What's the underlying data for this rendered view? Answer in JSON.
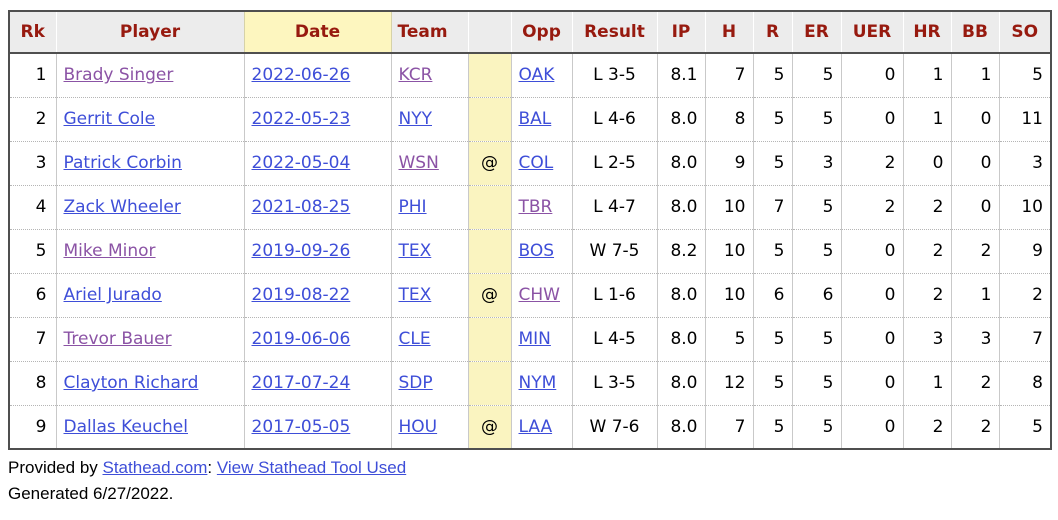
{
  "colors": {
    "header_text": "#971a0f",
    "link_blue": "#3e4ed8",
    "link_visited_purple": "#8b53a5",
    "header_bg": "#ececec",
    "sorted_column_yellow": "#fdf6bf",
    "at_column_yellow": "#faf4c0"
  },
  "table": {
    "columns": [
      {
        "key": "rk",
        "label": "Rk"
      },
      {
        "key": "player",
        "label": "Player"
      },
      {
        "key": "date",
        "label": "Date"
      },
      {
        "key": "team",
        "label": "Team"
      },
      {
        "key": "at",
        "label": ""
      },
      {
        "key": "opp",
        "label": "Opp"
      },
      {
        "key": "result",
        "label": "Result"
      },
      {
        "key": "ip",
        "label": "IP"
      },
      {
        "key": "h",
        "label": "H"
      },
      {
        "key": "r",
        "label": "R"
      },
      {
        "key": "er",
        "label": "ER"
      },
      {
        "key": "uer",
        "label": "UER"
      },
      {
        "key": "hr",
        "label": "HR"
      },
      {
        "key": "bb",
        "label": "BB"
      },
      {
        "key": "so",
        "label": "SO"
      }
    ],
    "sorted_column": "date",
    "link_columns": [
      "player",
      "date",
      "team",
      "opp"
    ],
    "rows": [
      {
        "rk": "1",
        "player": "Brady Singer",
        "player_visited": true,
        "date": "2022-06-26",
        "team": "KCR",
        "team_visited": true,
        "at": "",
        "opp": "OAK",
        "opp_visited": false,
        "result": "L 3-5",
        "ip": "8.1",
        "h": "7",
        "r": "5",
        "er": "5",
        "uer": "0",
        "hr": "1",
        "bb": "1",
        "so": "5"
      },
      {
        "rk": "2",
        "player": "Gerrit Cole",
        "player_visited": false,
        "date": "2022-05-23",
        "team": "NYY",
        "team_visited": false,
        "at": "",
        "opp": "BAL",
        "opp_visited": false,
        "result": "L 4-6",
        "ip": "8.0",
        "h": "8",
        "r": "5",
        "er": "5",
        "uer": "0",
        "hr": "1",
        "bb": "0",
        "so": "11"
      },
      {
        "rk": "3",
        "player": "Patrick Corbin",
        "player_visited": false,
        "date": "2022-05-04",
        "team": "WSN",
        "team_visited": true,
        "at": "@",
        "opp": "COL",
        "opp_visited": false,
        "result": "L 2-5",
        "ip": "8.0",
        "h": "9",
        "r": "5",
        "er": "3",
        "uer": "2",
        "hr": "0",
        "bb": "0",
        "so": "3"
      },
      {
        "rk": "4",
        "player": "Zack Wheeler",
        "player_visited": false,
        "date": "2021-08-25",
        "team": "PHI",
        "team_visited": false,
        "at": "",
        "opp": "TBR",
        "opp_visited": true,
        "result": "L 4-7",
        "ip": "8.0",
        "h": "10",
        "r": "7",
        "er": "5",
        "uer": "2",
        "hr": "2",
        "bb": "0",
        "so": "10"
      },
      {
        "rk": "5",
        "player": "Mike Minor",
        "player_visited": true,
        "date": "2019-09-26",
        "team": "TEX",
        "team_visited": false,
        "at": "",
        "opp": "BOS",
        "opp_visited": false,
        "result": "W 7-5",
        "ip": "8.2",
        "h": "10",
        "r": "5",
        "er": "5",
        "uer": "0",
        "hr": "2",
        "bb": "2",
        "so": "9"
      },
      {
        "rk": "6",
        "player": "Ariel Jurado",
        "player_visited": false,
        "date": "2019-08-22",
        "team": "TEX",
        "team_visited": false,
        "at": "@",
        "opp": "CHW",
        "opp_visited": true,
        "result": "L 1-6",
        "ip": "8.0",
        "h": "10",
        "r": "6",
        "er": "6",
        "uer": "0",
        "hr": "2",
        "bb": "1",
        "so": "2"
      },
      {
        "rk": "7",
        "player": "Trevor Bauer",
        "player_visited": true,
        "date": "2019-06-06",
        "team": "CLE",
        "team_visited": false,
        "at": "",
        "opp": "MIN",
        "opp_visited": false,
        "result": "L 4-5",
        "ip": "8.0",
        "h": "5",
        "r": "5",
        "er": "5",
        "uer": "0",
        "hr": "3",
        "bb": "3",
        "so": "7"
      },
      {
        "rk": "8",
        "player": "Clayton Richard",
        "player_visited": false,
        "date": "2017-07-24",
        "team": "SDP",
        "team_visited": false,
        "at": "",
        "opp": "NYM",
        "opp_visited": false,
        "result": "L 3-5",
        "ip": "8.0",
        "h": "12",
        "r": "5",
        "er": "5",
        "uer": "0",
        "hr": "1",
        "bb": "2",
        "so": "8"
      },
      {
        "rk": "9",
        "player": "Dallas Keuchel",
        "player_visited": false,
        "date": "2017-05-05",
        "team": "HOU",
        "team_visited": false,
        "at": "@",
        "opp": "LAA",
        "opp_visited": false,
        "result": "W 7-6",
        "ip": "8.0",
        "h": "7",
        "r": "5",
        "er": "5",
        "uer": "0",
        "hr": "2",
        "bb": "2",
        "so": "5"
      }
    ]
  },
  "footer": {
    "provided_prefix": "Provided by ",
    "site_link": "Stathead.com",
    "separator": ": ",
    "tool_link": "View Stathead Tool Used",
    "generated": "Generated 6/27/2022."
  }
}
